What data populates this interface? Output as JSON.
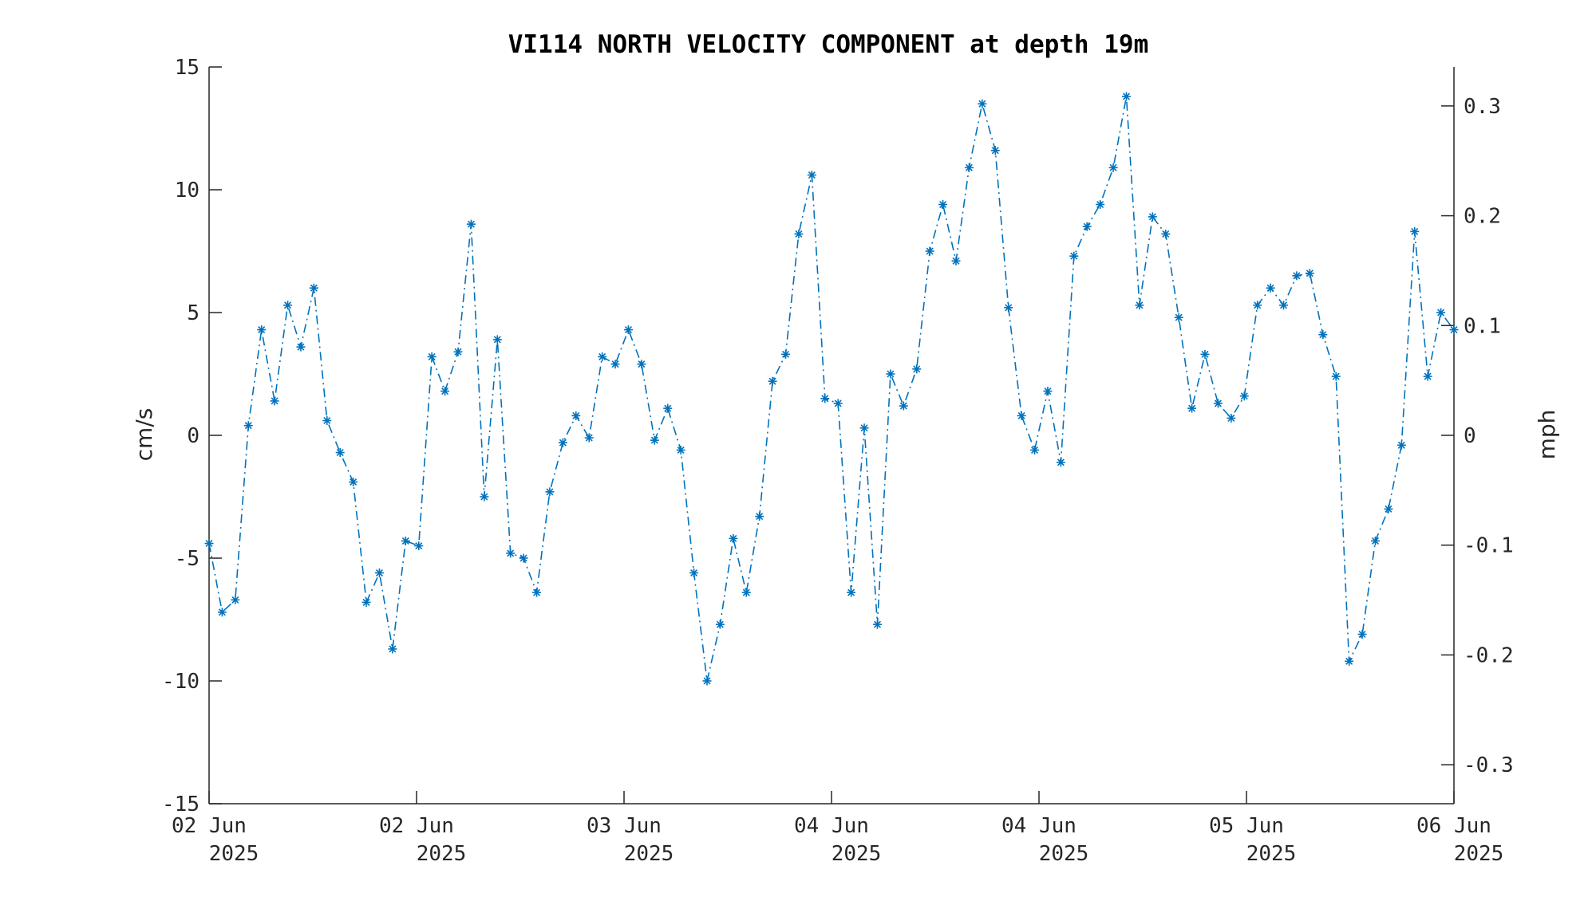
{
  "chart_data": {
    "type": "line",
    "title": "VI114 NORTH VELOCITY COMPONENT at depth 19m",
    "ylabel": "cm/s",
    "y2label": "mph",
    "ylim": [
      -15,
      15
    ],
    "y2lim": [
      -0.3355,
      0.3355
    ],
    "yticks": [
      "15",
      "10",
      "5",
      "0",
      "-5",
      "-10",
      "-15"
    ],
    "y2ticks": [
      "0.3",
      "0.2",
      "0.1",
      "0",
      "-0.1",
      "-0.2",
      "-0.3"
    ],
    "xticks": [
      {
        "line1": "02 Jun",
        "line2": "2025"
      },
      {
        "line1": "02 Jun",
        "line2": "2025"
      },
      {
        "line1": "03 Jun",
        "line2": "2025"
      },
      {
        "line1": "04 Jun",
        "line2": "2025"
      },
      {
        "line1": "04 Jun",
        "line2": "2025"
      },
      {
        "line1": "05 Jun",
        "line2": "2025"
      },
      {
        "line1": "06 Jun",
        "line2": "2025"
      }
    ],
    "series": [
      {
        "color": "#0072BD",
        "line_style": "dash-dot",
        "marker": "asterisk",
        "values": [
          -4.4,
          -7.2,
          -6.7,
          0.4,
          4.3,
          1.4,
          5.3,
          3.6,
          6.0,
          0.6,
          -0.7,
          -1.9,
          -6.8,
          -5.6,
          -8.7,
          -4.3,
          -4.5,
          3.2,
          1.8,
          3.4,
          8.6,
          -2.5,
          3.9,
          -4.8,
          -5.0,
          -6.4,
          -2.3,
          -0.3,
          0.8,
          -0.1,
          3.2,
          2.9,
          4.3,
          2.9,
          -0.2,
          1.1,
          -0.6,
          -5.6,
          -10.0,
          -7.7,
          -4.2,
          -6.4,
          -3.3,
          2.2,
          3.3,
          8.2,
          10.6,
          1.5,
          1.3,
          -6.4,
          0.3,
          -7.7,
          2.5,
          1.2,
          2.7,
          7.5,
          9.4,
          7.1,
          10.9,
          13.5,
          11.6,
          5.2,
          0.8,
          -0.6,
          1.8,
          -1.1,
          7.3,
          8.5,
          9.4,
          10.9,
          13.8,
          5.3,
          8.9,
          8.2,
          4.8,
          1.1,
          3.3,
          1.3,
          0.7,
          1.6,
          5.3,
          6.0,
          5.3,
          6.5,
          6.6,
          4.1,
          2.4,
          -9.2,
          -8.1,
          -4.3,
          -3.0,
          -0.4,
          8.3,
          2.4,
          5.0,
          4.3
        ]
      }
    ]
  }
}
